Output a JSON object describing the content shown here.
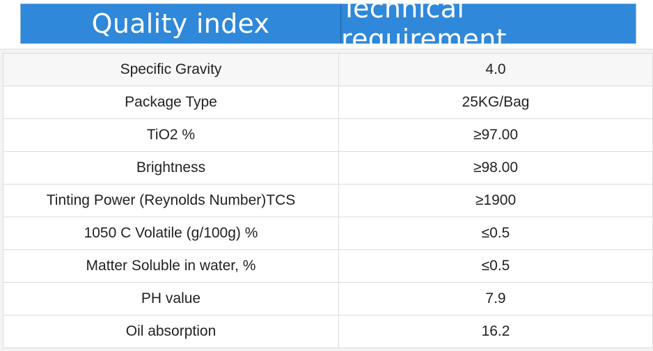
{
  "header": {
    "col1": "Quality index",
    "col2": "Technical requirement"
  },
  "rows": [
    {
      "index": "Specific Gravity",
      "requirement": "4.0"
    },
    {
      "index": "Package Type",
      "requirement": "25KG/Bag"
    },
    {
      "index": "TiO2 %",
      "requirement": "≥97.00"
    },
    {
      "index": "Brightness",
      "requirement": "≥98.00"
    },
    {
      "index": "Tinting Power (Reynolds Number)TCS",
      "requirement": "≥1900"
    },
    {
      "index": "1050 C Volatile (g/100g) %",
      "requirement": "≤0.5"
    },
    {
      "index": "Matter Soluble in water, %",
      "requirement": "≤0.5"
    },
    {
      "index": "PH value",
      "requirement": "7.9"
    },
    {
      "index": "Oil absorption",
      "requirement": "16.2"
    }
  ],
  "colors": {
    "header_bg": "#2f88d9",
    "header_text": "#ffffff",
    "row_border": "#dcdcdc"
  }
}
